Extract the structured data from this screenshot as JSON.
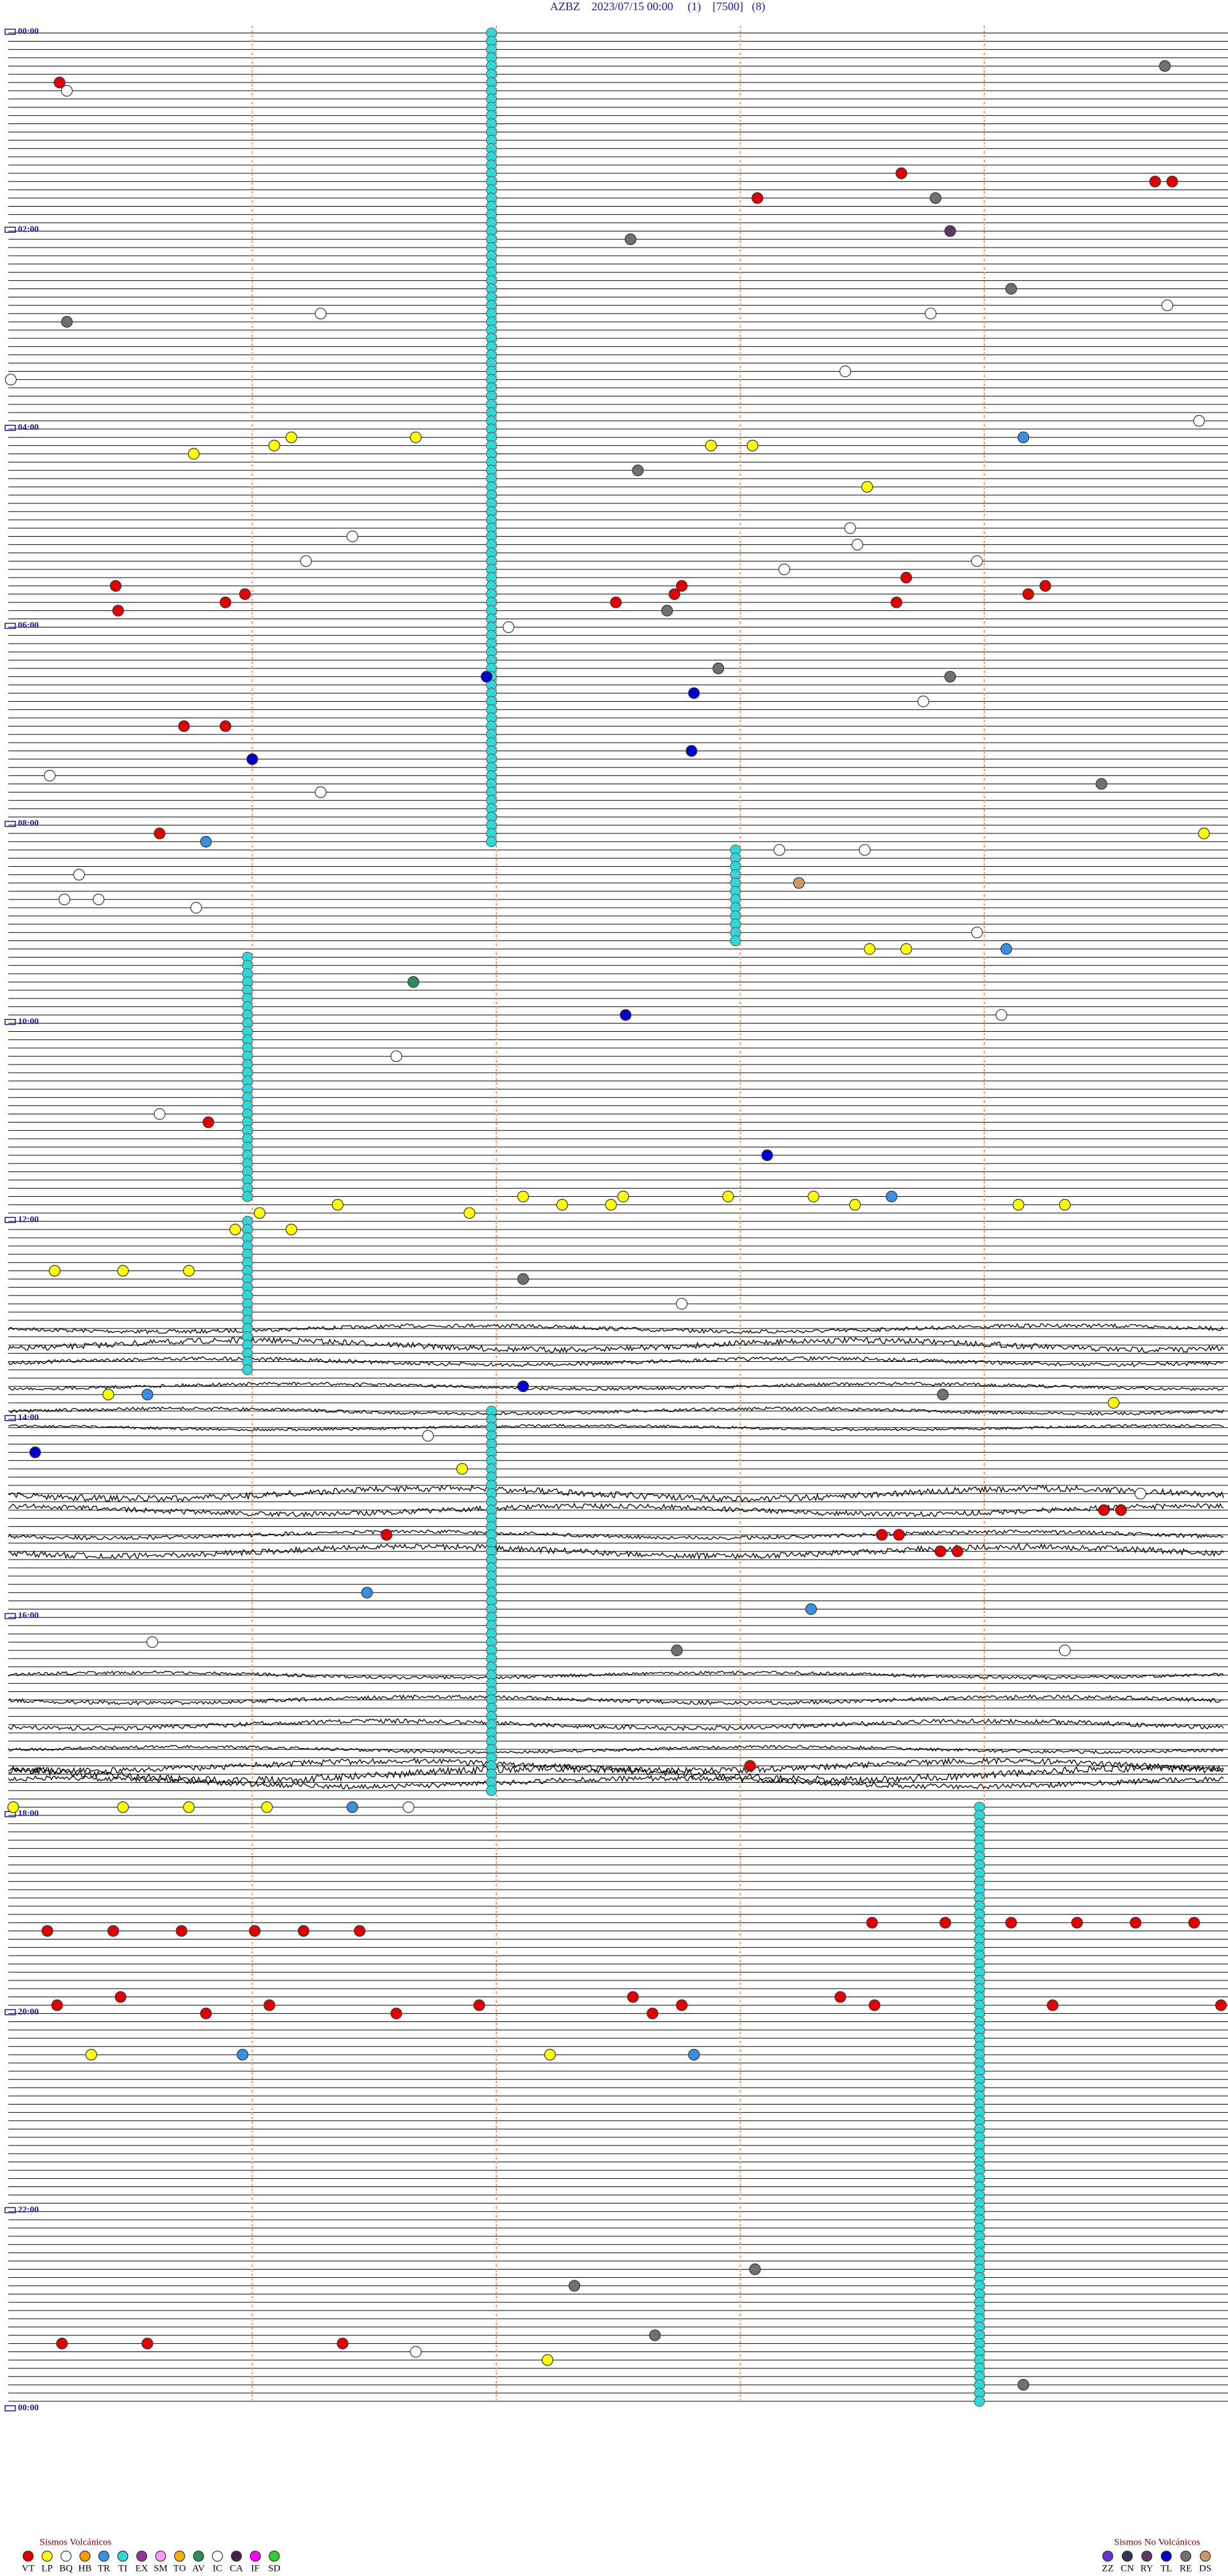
{
  "header": {
    "title": "AZBZ    2023/07/15 00:00     (1)    [7500]   (8)"
  },
  "hour_labels": [
    "00:00",
    "02:00",
    "04:00",
    "06:00",
    "08:00",
    "10:00",
    "12:00",
    "14:00",
    "16:00",
    "18:00",
    "20:00",
    "22:00",
    "00:00"
  ],
  "ti_runs": [
    {
      "minute": 1.98,
      "rows": [
        0,
        98
      ]
    },
    {
      "minute": 2.98,
      "rows": [
        99,
        110
      ]
    },
    {
      "minute": 0.98,
      "rows": [
        112,
        141
      ]
    },
    {
      "minute": 0.98,
      "rows": [
        144,
        162
      ]
    },
    {
      "minute": 1.98,
      "rows": [
        167,
        213
      ]
    },
    {
      "minute": 3.98,
      "rows": [
        215,
        287
      ]
    }
  ],
  "events": [
    {
      "type": "VT",
      "row": 6,
      "minute": 0.21
    },
    {
      "type": "IC",
      "row": 7,
      "minute": 0.24
    },
    {
      "type": "RE",
      "row": 4,
      "minute": 4.74
    },
    {
      "type": "VT",
      "row": 17,
      "minute": 3.66
    },
    {
      "type": "VT",
      "row": 20,
      "minute": 3.07
    },
    {
      "type": "RE",
      "row": 20,
      "minute": 3.8
    },
    {
      "type": "VT",
      "row": 18,
      "minute": 4.7
    },
    {
      "type": "VT",
      "row": 18,
      "minute": 4.77
    },
    {
      "type": "RE",
      "row": 25,
      "minute": 2.55
    },
    {
      "type": "RY",
      "row": 24,
      "minute": 3.86
    },
    {
      "type": "RE",
      "row": 31,
      "minute": 4.11
    },
    {
      "type": "RE",
      "row": 35,
      "minute": 0.24
    },
    {
      "type": "IC",
      "row": 34,
      "minute": 1.28
    },
    {
      "type": "IC",
      "row": 34,
      "minute": 3.78
    },
    {
      "type": "IC",
      "row": 33,
      "minute": 4.75
    },
    {
      "type": "IC",
      "row": 41,
      "minute": 3.43
    },
    {
      "type": "IC",
      "row": 42,
      "minute": 0.01
    },
    {
      "type": "IC",
      "row": 47,
      "minute": 4.88
    },
    {
      "type": "LP",
      "row": 51,
      "minute": 0.76
    },
    {
      "type": "LP",
      "row": 50,
      "minute": 1.09
    },
    {
      "type": "LP",
      "row": 49,
      "minute": 1.16
    },
    {
      "type": "LP",
      "row": 49,
      "minute": 1.67
    },
    {
      "type": "LP",
      "row": 50,
      "minute": 2.88
    },
    {
      "type": "LP",
      "row": 50,
      "minute": 3.05
    },
    {
      "type": "TR",
      "row": 49,
      "minute": 4.16
    },
    {
      "type": "RE",
      "row": 53,
      "minute": 2.58
    },
    {
      "type": "LP",
      "row": 55,
      "minute": 3.52
    },
    {
      "type": "IC",
      "row": 61,
      "minute": 1.41
    },
    {
      "type": "IC",
      "row": 64,
      "minute": 1.22
    },
    {
      "type": "IC",
      "row": 60,
      "minute": 3.45
    },
    {
      "type": "IC",
      "row": 62,
      "minute": 3.48
    },
    {
      "type": "IC",
      "row": 65,
      "minute": 3.18
    },
    {
      "type": "IC",
      "row": 64,
      "minute": 3.97
    },
    {
      "type": "VT",
      "row": 67,
      "minute": 0.44
    },
    {
      "type": "VT",
      "row": 70,
      "minute": 0.45
    },
    {
      "type": "VT",
      "row": 69,
      "minute": 0.89
    },
    {
      "type": "VT",
      "row": 68,
      "minute": 0.97
    },
    {
      "type": "VT",
      "row": 67,
      "minute": 2.76
    },
    {
      "type": "VT",
      "row": 68,
      "minute": 2.73
    },
    {
      "type": "VT",
      "row": 69,
      "minute": 2.49
    },
    {
      "type": "VT",
      "row": 66,
      "minute": 3.68
    },
    {
      "type": "VT",
      "row": 69,
      "minute": 3.64
    },
    {
      "type": "VT",
      "row": 67,
      "minute": 4.25
    },
    {
      "type": "VT",
      "row": 68,
      "minute": 4.18
    },
    {
      "type": "RE",
      "row": 70,
      "minute": 2.7
    },
    {
      "type": "IC",
      "row": 72,
      "minute": 2.05
    },
    {
      "type": "TL",
      "row": 78,
      "minute": 1.96
    },
    {
      "type": "RE",
      "row": 77,
      "minute": 2.91
    },
    {
      "type": "RE",
      "row": 78,
      "minute": 3.86
    },
    {
      "type": "TL",
      "row": 80,
      "minute": 2.81
    },
    {
      "type": "IC",
      "row": 81,
      "minute": 3.75
    },
    {
      "type": "VT",
      "row": 84,
      "minute": 0.72
    },
    {
      "type": "VT",
      "row": 84,
      "minute": 0.89
    },
    {
      "type": "TL",
      "row": 88,
      "minute": 1.0
    },
    {
      "type": "TL",
      "row": 87,
      "minute": 2.8
    },
    {
      "type": "IC",
      "row": 90,
      "minute": 0.17
    },
    {
      "type": "IC",
      "row": 92,
      "minute": 1.28
    },
    {
      "type": "RE",
      "row": 91,
      "minute": 4.48
    },
    {
      "type": "VT",
      "row": 97,
      "minute": 0.62
    },
    {
      "type": "TR",
      "row": 98,
      "minute": 0.81
    },
    {
      "type": "LP",
      "row": 97,
      "minute": 4.9
    },
    {
      "type": "IC",
      "row": 99,
      "minute": 3.16
    },
    {
      "type": "IC",
      "row": 99,
      "minute": 3.51
    },
    {
      "type": "IC",
      "row": 102,
      "minute": 0.29
    },
    {
      "type": "DS",
      "row": 103,
      "minute": 3.24
    },
    {
      "type": "IC",
      "row": 105,
      "minute": 0.23
    },
    {
      "type": "IC",
      "row": 105,
      "minute": 0.37
    },
    {
      "type": "IC",
      "row": 106,
      "minute": 0.77
    },
    {
      "type": "IC",
      "row": 109,
      "minute": 3.97
    },
    {
      "type": "TR",
      "row": 111,
      "minute": 4.09
    },
    {
      "type": "LP",
      "row": 111,
      "minute": 3.53
    },
    {
      "type": "LP",
      "row": 111,
      "minute": 3.68
    },
    {
      "type": "AV",
      "row": 115,
      "minute": 1.66
    },
    {
      "type": "IC",
      "row": 119,
      "minute": 4.07
    },
    {
      "type": "TL",
      "row": 119,
      "minute": 2.53
    },
    {
      "type": "IC",
      "row": 124,
      "minute": 1.59
    },
    {
      "type": "IC",
      "row": 131,
      "minute": 0.62
    },
    {
      "type": "VT",
      "row": 132,
      "minute": 0.82
    },
    {
      "type": "TL",
      "row": 136,
      "minute": 3.11
    },
    {
      "type": "LP",
      "row": 142,
      "minute": 1.35
    },
    {
      "type": "LP",
      "row": 143,
      "minute": 1.89
    },
    {
      "type": "LP",
      "row": 141,
      "minute": 2.11
    },
    {
      "type": "LP",
      "row": 142,
      "minute": 2.27
    },
    {
      "type": "LP",
      "row": 142,
      "minute": 2.47
    },
    {
      "type": "LP",
      "row": 141,
      "minute": 2.52
    },
    {
      "type": "LP",
      "row": 141,
      "minute": 2.95
    },
    {
      "type": "LP",
      "row": 141,
      "minute": 3.3
    },
    {
      "type": "LP",
      "row": 142,
      "minute": 3.47
    },
    {
      "type": "TR",
      "row": 141,
      "minute": 3.62
    },
    {
      "type": "LP",
      "row": 142,
      "minute": 4.14
    },
    {
      "type": "LP",
      "row": 142,
      "minute": 4.33
    },
    {
      "type": "LP",
      "row": 143,
      "minute": 1.03
    },
    {
      "type": "LP",
      "row": 145,
      "minute": 0.93
    },
    {
      "type": "LP",
      "row": 145,
      "minute": 1.16
    },
    {
      "type": "LP",
      "row": 150,
      "minute": 0.19
    },
    {
      "type": "LP",
      "row": 150,
      "minute": 0.47
    },
    {
      "type": "LP",
      "row": 150,
      "minute": 0.74
    },
    {
      "type": "RE",
      "row": 151,
      "minute": 2.11
    },
    {
      "type": "IC",
      "row": 154,
      "minute": 2.76
    },
    {
      "type": "TR",
      "row": 165,
      "minute": 0.57
    },
    {
      "type": "TL",
      "row": 164,
      "minute": 2.11
    },
    {
      "type": "RE",
      "row": 165,
      "minute": 3.83
    },
    {
      "type": "LP",
      "row": 166,
      "minute": 4.53
    },
    {
      "type": "LP",
      "row": 165,
      "minute": 0.41
    },
    {
      "type": "TL",
      "row": 172,
      "minute": 0.11
    },
    {
      "type": "IC",
      "row": 170,
      "minute": 1.72
    },
    {
      "type": "LP",
      "row": 174,
      "minute": 1.86
    },
    {
      "type": "VT",
      "row": 179,
      "minute": 4.49
    },
    {
      "type": "VT",
      "row": 179,
      "minute": 4.56
    },
    {
      "type": "IC",
      "row": 177,
      "minute": 4.64
    },
    {
      "type": "VT",
      "row": 182,
      "minute": 3.58
    },
    {
      "type": "VT",
      "row": 182,
      "minute": 3.65
    },
    {
      "type": "VT",
      "row": 184,
      "minute": 3.82
    },
    {
      "type": "VT",
      "row": 184,
      "minute": 3.89
    },
    {
      "type": "VT",
      "row": 182,
      "minute": 1.55
    },
    {
      "type": "TR",
      "row": 189,
      "minute": 1.47
    },
    {
      "type": "TR",
      "row": 191,
      "minute": 3.29
    },
    {
      "type": "IC",
      "row": 195,
      "minute": 0.59
    },
    {
      "type": "RE",
      "row": 196,
      "minute": 2.74
    },
    {
      "type": "IC",
      "row": 196,
      "minute": 4.33
    },
    {
      "type": "VT",
      "row": 210,
      "minute": 3.04
    },
    {
      "type": "LP",
      "row": 215,
      "minute": 0.47
    },
    {
      "type": "LP",
      "row": 215,
      "minute": 0.74
    },
    {
      "type": "LP",
      "row": 215,
      "minute": 1.06
    },
    {
      "type": "TR",
      "row": 215,
      "minute": 1.41
    },
    {
      "type": "IC",
      "row": 215,
      "minute": 1.64
    },
    {
      "type": "LP",
      "row": 215,
      "minute": 0.02
    },
    {
      "type": "VT",
      "row": 230,
      "minute": 0.16
    },
    {
      "type": "VT",
      "row": 230,
      "minute": 0.43
    },
    {
      "type": "VT",
      "row": 230,
      "minute": 0.71
    },
    {
      "type": "VT",
      "row": 230,
      "minute": 1.01
    },
    {
      "type": "VT",
      "row": 230,
      "minute": 1.21
    },
    {
      "type": "VT",
      "row": 230,
      "minute": 1.44
    },
    {
      "type": "VT",
      "row": 229,
      "minute": 3.54
    },
    {
      "type": "VT",
      "row": 229,
      "minute": 3.84
    },
    {
      "type": "VT",
      "row": 229,
      "minute": 4.11
    },
    {
      "type": "VT",
      "row": 229,
      "minute": 4.38
    },
    {
      "type": "VT",
      "row": 229,
      "minute": 4.62
    },
    {
      "type": "VT",
      "row": 229,
      "minute": 4.86
    },
    {
      "type": "VT",
      "row": 239,
      "minute": 0.2
    },
    {
      "type": "VT",
      "row": 238,
      "minute": 0.46
    },
    {
      "type": "VT",
      "row": 240,
      "minute": 0.81
    },
    {
      "type": "VT",
      "row": 239,
      "minute": 1.07
    },
    {
      "type": "VT",
      "row": 240,
      "minute": 1.59
    },
    {
      "type": "VT",
      "row": 239,
      "minute": 1.93
    },
    {
      "type": "VT",
      "row": 238,
      "minute": 2.56
    },
    {
      "type": "VT",
      "row": 240,
      "minute": 2.64
    },
    {
      "type": "VT",
      "row": 239,
      "minute": 2.76
    },
    {
      "type": "VT",
      "row": 238,
      "minute": 3.41
    },
    {
      "type": "VT",
      "row": 239,
      "minute": 3.55
    },
    {
      "type": "VT",
      "row": 239,
      "minute": 4.28
    },
    {
      "type": "VT",
      "row": 239,
      "minute": 4.97
    },
    {
      "type": "LP",
      "row": 245,
      "minute": 0.34
    },
    {
      "type": "LP",
      "row": 245,
      "minute": 2.22
    },
    {
      "type": "TR",
      "row": 245,
      "minute": 2.81
    },
    {
      "type": "TR",
      "row": 245,
      "minute": 0.96
    },
    {
      "type": "VT",
      "row": 280,
      "minute": 0.22
    },
    {
      "type": "VT",
      "row": 280,
      "minute": 0.57
    },
    {
      "type": "VT",
      "row": 280,
      "minute": 1.37
    },
    {
      "type": "IC",
      "row": 281,
      "minute": 1.67
    },
    {
      "type": "LP",
      "row": 282,
      "minute": 2.21
    },
    {
      "type": "RE",
      "row": 279,
      "minute": 2.65
    },
    {
      "type": "RE",
      "row": 273,
      "minute": 2.32
    },
    {
      "type": "RE",
      "row": 271,
      "minute": 3.06
    },
    {
      "type": "RE",
      "row": 285,
      "minute": 4.16
    }
  ],
  "legend": {
    "volcanic": {
      "title": "Sismos Volcánicos",
      "items": [
        {
          "code": "VT",
          "color": "#e00000"
        },
        {
          "code": "LP",
          "color": "#ffff00"
        },
        {
          "code": "BQ",
          "color": "#ffffff"
        },
        {
          "code": "HB",
          "color": "#ff9900"
        },
        {
          "code": "TR",
          "color": "#3a8fe0"
        },
        {
          "code": "TI",
          "color": "#33d6d6"
        },
        {
          "code": "EX",
          "color": "#993399"
        },
        {
          "code": "SM",
          "color": "#ff99ff"
        },
        {
          "code": "TO",
          "color": "#ffb000"
        },
        {
          "code": "AV",
          "color": "#2e8b57"
        },
        {
          "code": "IC",
          "color": "#ffffff"
        },
        {
          "code": "CA",
          "color": "#442244"
        },
        {
          "code": "IF",
          "color": "#ff00ff"
        },
        {
          "code": "SD",
          "color": "#33cc33"
        }
      ]
    },
    "non_volcanic": {
      "title": "Sismos No Volcánicos",
      "items": [
        {
          "code": "ZZ",
          "color": "#6633cc"
        },
        {
          "code": "CN",
          "color": "#333355"
        },
        {
          "code": "RY",
          "color": "#663366"
        },
        {
          "code": "TL",
          "color": "#0000cc"
        },
        {
          "code": "RE",
          "color": "#707070"
        },
        {
          "code": "DS",
          "color": "#cc9966"
        }
      ]
    }
  }
}
